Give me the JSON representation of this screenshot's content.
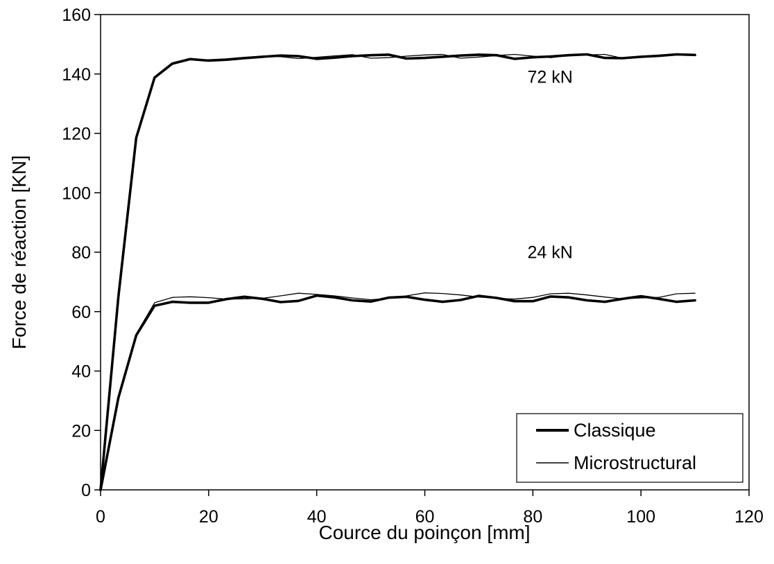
{
  "chart_data": {
    "type": "line",
    "title": "",
    "xlabel": "Cource du poinçon [mm]",
    "ylabel": "Force de réaction [KN]",
    "xlim": [
      0,
      120
    ],
    "ylim": [
      0,
      160
    ],
    "xticks": [
      0,
      20,
      40,
      60,
      80,
      100,
      120
    ],
    "yticks": [
      0,
      20,
      40,
      60,
      80,
      100,
      120,
      140,
      160
    ],
    "grid": false,
    "legend_position": "bottom-right",
    "legend": [
      {
        "label": "Classique",
        "style": "thick"
      },
      {
        "label": "Microstructural",
        "style": "thin"
      }
    ],
    "annotations": [
      {
        "text": "72 kN",
        "x": 79,
        "y": 137
      },
      {
        "text": "24 kN",
        "x": 79,
        "y": 78
      }
    ],
    "series": [
      {
        "name": "Classique",
        "group": "72 kN",
        "style": "thick",
        "x": [
          0,
          3.3,
          6.6,
          10,
          13.3,
          16.6,
          20,
          23.3,
          26.6,
          30,
          33.3,
          36.6,
          40,
          43.3,
          46.6,
          50,
          53.3,
          56.6,
          60,
          63.3,
          66.6,
          70,
          73.3,
          76.6,
          80,
          83.3,
          86.6,
          90,
          93.3,
          96.6,
          100,
          103.3,
          106.6,
          110
        ],
        "y": [
          0,
          65,
          118.5,
          138.8,
          143.5,
          145,
          144.5,
          144.8,
          145.3,
          145.8,
          146.2,
          146,
          145.1,
          145.5,
          146,
          146.3,
          146.5,
          145.2,
          145.4,
          145.8,
          146.2,
          146.5,
          146.3,
          145.1,
          145.6,
          145.9,
          146.3,
          146.6,
          145.4,
          145.3,
          145.8,
          146.1,
          146.6,
          146.4
        ]
      },
      {
        "name": "Microstructural",
        "group": "72 kN",
        "style": "thin",
        "x": [
          0,
          3.3,
          6.6,
          10,
          13.3,
          16.6,
          20,
          23.3,
          26.6,
          30,
          33.3,
          36.6,
          40,
          43.3,
          46.6,
          50,
          53.3,
          56.6,
          60,
          63.3,
          66.6,
          70,
          73.3,
          76.6,
          80,
          83.3,
          86.6,
          90,
          93.3,
          96.6,
          100,
          103.3,
          106.6,
          110
        ],
        "y": [
          0,
          64,
          118,
          138.5,
          143.2,
          144.8,
          144.8,
          145.1,
          145.6,
          146,
          145.8,
          145.2,
          145.6,
          146.1,
          146.5,
          145.3,
          145.5,
          146,
          146.4,
          146.6,
          145.3,
          145.7,
          146.2,
          146.6,
          146,
          145.5,
          146.2,
          146.4,
          146.6,
          145.3,
          145.9,
          146.3,
          146.6,
          146.3
        ]
      },
      {
        "name": "Classique",
        "group": "24 kN",
        "style": "thick",
        "x": [
          0,
          3.3,
          6.6,
          10,
          13.3,
          16.6,
          20,
          23.3,
          26.6,
          30,
          33.3,
          36.6,
          40,
          43.3,
          46.6,
          50,
          53.3,
          56.6,
          60,
          63.3,
          66.6,
          70,
          73.3,
          76.6,
          80,
          83.3,
          86.6,
          90,
          93.3,
          96.6,
          100,
          103.3,
          106.6,
          110
        ],
        "y": [
          0,
          31,
          52,
          62,
          63.3,
          63,
          63,
          64.2,
          65,
          64.3,
          63.2,
          63.6,
          65.4,
          64.8,
          63.8,
          63.4,
          64.7,
          65,
          64,
          63.3,
          63.9,
          65.3,
          64.6,
          63.5,
          63.5,
          65.1,
          64.8,
          63.8,
          63.3,
          64.3,
          65.2,
          64.3,
          63.3,
          63.8
        ]
      },
      {
        "name": "Microstructural",
        "group": "24 kN",
        "style": "thin",
        "x": [
          0,
          3.3,
          6.6,
          10,
          13.3,
          16.6,
          20,
          23.3,
          26.6,
          30,
          33.3,
          36.6,
          40,
          43.3,
          46.6,
          50,
          53.3,
          56.6,
          60,
          63.3,
          66.6,
          70,
          73.3,
          76.6,
          80,
          83.3,
          86.6,
          90,
          93.3,
          96.6,
          100,
          103.3,
          106.6,
          110
        ],
        "y": [
          0,
          31,
          52.5,
          63,
          64.8,
          65,
          64.7,
          64.2,
          64.3,
          64.5,
          65.3,
          66.2,
          65.8,
          65.3,
          64.6,
          64,
          64.5,
          65.3,
          66.3,
          66.1,
          65.6,
          64.9,
          64.5,
          64.2,
          64.8,
          66,
          66.2,
          65.6,
          64.9,
          64.3,
          64.6,
          64.8,
          66,
          66.2
        ]
      }
    ]
  }
}
